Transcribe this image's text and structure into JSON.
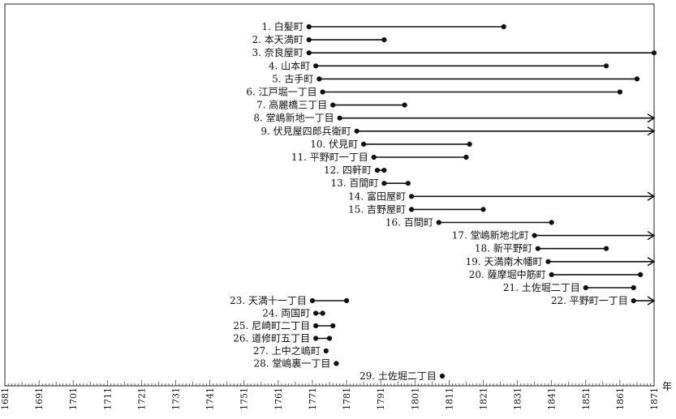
{
  "chart_data": {
    "type": "range",
    "x_unit": "年",
    "xlim": [
      1681,
      1871
    ],
    "x_ticks": [
      1681,
      1691,
      1701,
      1711,
      1721,
      1731,
      1741,
      1751,
      1761,
      1771,
      1781,
      1791,
      1801,
      1811,
      1821,
      1831,
      1841,
      1851,
      1861,
      1871
    ],
    "grid": false,
    "rows": [
      {
        "label": "1.  白髪町",
        "start": 1770,
        "end": 1827,
        "open_end": false
      },
      {
        "label": "2.  本天満町",
        "start": 1770,
        "end": 1792,
        "open_end": false
      },
      {
        "label": "3.  奈良屋町",
        "start": 1770,
        "end": 1871,
        "open_end": false
      },
      {
        "label": "4.  山本町",
        "start": 1772,
        "end": 1857,
        "open_end": false
      },
      {
        "label": "5.  古手町",
        "start": 1773,
        "end": 1866,
        "open_end": false
      },
      {
        "label": "6.  江戸堀一丁目",
        "start": 1774,
        "end": 1861,
        "open_end": false
      },
      {
        "label": "7.  高麗橋三丁目",
        "start": 1777,
        "end": 1798,
        "open_end": false
      },
      {
        "label": "8.  堂嶋新地一丁目",
        "start": 1779,
        "end": 1871,
        "open_end": true
      },
      {
        "label": "9.  伏見屋四郎兵衛町",
        "start": 1784,
        "end": 1871,
        "open_end": true
      },
      {
        "label": "10.  伏見町",
        "start": 1786,
        "end": 1817,
        "open_end": false
      },
      {
        "label": "11.  平野町一丁目",
        "start": 1789,
        "end": 1816,
        "open_end": false
      },
      {
        "label": "12.  四軒町",
        "start": 1790,
        "end": 1792,
        "open_end": false
      },
      {
        "label": "13.  百間町",
        "start": 1792,
        "end": 1799,
        "open_end": false
      },
      {
        "label": "14.  富田屋町",
        "start": 1800,
        "end": 1871,
        "open_end": true
      },
      {
        "label": "15.  吉野屋町",
        "start": 1800,
        "end": 1821,
        "open_end": false
      },
      {
        "label": "16.  百間町",
        "start": 1808,
        "end": 1841,
        "open_end": false
      },
      {
        "label": "17.  堂嶋新地北町",
        "start": 1836,
        "end": 1871,
        "open_end": true
      },
      {
        "label": "18.  新平野町",
        "start": 1837,
        "end": 1857,
        "open_end": false
      },
      {
        "label": "19.  天満南木幡町",
        "start": 1840,
        "end": 1871,
        "open_end": true
      },
      {
        "label": "20.  薩摩堀中筋町",
        "start": 1841,
        "end": 1867,
        "open_end": false
      },
      {
        "label": "21.  土佐堀二丁目",
        "start": 1851,
        "end": 1865,
        "open_end": false
      },
      {
        "label": "22.  平野町一丁目",
        "start": 1865,
        "end": 1871,
        "open_end": true
      },
      {
        "label": "23.  天満十一丁目",
        "start": 1771,
        "end": 1781,
        "open_end": false
      },
      {
        "label": "24.  両国町",
        "start": 1772,
        "end": 1774,
        "open_end": false
      },
      {
        "label": "25.  尼崎町二丁目",
        "start": 1772,
        "end": 1777,
        "open_end": false
      },
      {
        "label": "26.  道修町五丁目",
        "start": 1772,
        "end": 1776,
        "open_end": false
      },
      {
        "label": "27.  上中之嶋町",
        "start": 1775,
        "end": 1775,
        "open_end": false
      },
      {
        "label": "28.  堂嶋裏一丁目",
        "start": 1778,
        "end": 1778,
        "open_end": false
      },
      {
        "label": "29.  土佐堀二丁目",
        "start": 1809,
        "end": 1809,
        "open_end": false
      }
    ]
  }
}
